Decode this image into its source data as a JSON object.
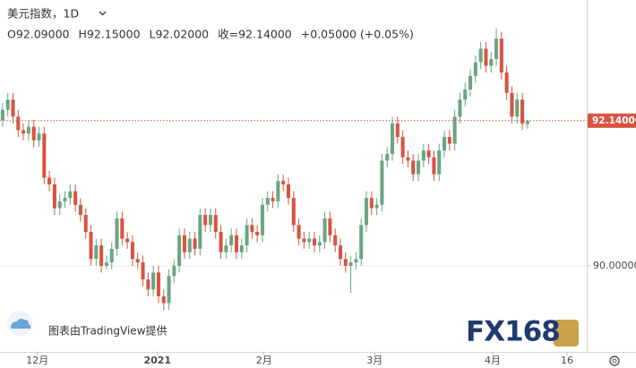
{
  "chart_data": {
    "type": "candlestick",
    "title": "美元指数，1D",
    "header_items": [
      "O92.09000",
      "H92.15000",
      "L92.02000",
      "收=92.14000",
      "+0.05000 (+0.05%)"
    ],
    "up_color": "#6ba583",
    "down_color": "#d75442",
    "ylim": [
      88.73,
      93.92
    ],
    "yticks": [
      {
        "value": 90,
        "label": "90.00000"
      }
    ],
    "last_price": {
      "value": 92.14,
      "label": "92.14000"
    },
    "xlim": [
      -0.5,
      112.4
    ],
    "xticks": [
      {
        "value": 6.7,
        "label": "12月"
      },
      {
        "value": 29.8,
        "label": "2021"
      },
      {
        "value": 50.3,
        "label": "2月"
      },
      {
        "value": 71.6,
        "label": "3月"
      },
      {
        "value": 94.3,
        "label": "4月"
      },
      {
        "value": 108.6,
        "label": "16"
      }
    ],
    "watermark": "图表由TradingView提供",
    "logo": "FX168",
    "candles": [
      [
        92.15,
        92.4,
        92.05,
        92.3
      ],
      [
        92.3,
        92.55,
        92.2,
        92.45
      ],
      [
        92.45,
        92.55,
        92.1,
        92.2
      ],
      [
        92.2,
        92.3,
        91.9,
        92.0
      ],
      [
        92.0,
        92.1,
        91.85,
        91.95
      ],
      [
        91.95,
        92.15,
        91.85,
        92.05
      ],
      [
        92.05,
        92.15,
        91.75,
        91.85
      ],
      [
        91.85,
        92.05,
        91.75,
        91.95
      ],
      [
        91.95,
        92.05,
        91.2,
        91.3
      ],
      [
        91.3,
        91.4,
        91.1,
        91.2
      ],
      [
        91.2,
        91.3,
        90.75,
        90.85
      ],
      [
        90.85,
        91.05,
        90.75,
        90.95
      ],
      [
        90.95,
        91.1,
        90.85,
        91.0
      ],
      [
        91.0,
        91.2,
        90.9,
        91.1
      ],
      [
        91.1,
        91.2,
        90.8,
        90.9
      ],
      [
        90.9,
        91.0,
        90.65,
        90.75
      ],
      [
        90.75,
        90.85,
        90.4,
        90.5
      ],
      [
        90.5,
        90.6,
        90.0,
        90.1
      ],
      [
        90.1,
        90.4,
        90.0,
        90.3
      ],
      [
        90.3,
        90.4,
        89.9,
        90.0
      ],
      [
        90.0,
        90.15,
        89.95,
        90.05
      ],
      [
        90.05,
        90.35,
        89.95,
        90.25
      ],
      [
        90.25,
        90.8,
        90.15,
        90.7
      ],
      [
        90.7,
        90.8,
        90.3,
        90.4
      ],
      [
        90.4,
        90.5,
        90.25,
        90.35
      ],
      [
        90.35,
        90.45,
        90.0,
        90.1
      ],
      [
        90.1,
        90.2,
        89.95,
        90.05
      ],
      [
        90.05,
        90.15,
        89.7,
        89.8
      ],
      [
        89.8,
        89.9,
        89.55,
        89.65
      ],
      [
        89.65,
        90.0,
        89.55,
        89.9
      ],
      [
        89.9,
        90.0,
        89.45,
        89.55
      ],
      [
        89.55,
        89.65,
        89.35,
        89.45
      ],
      [
        89.45,
        89.95,
        89.35,
        89.85
      ],
      [
        89.85,
        90.1,
        89.75,
        90.0
      ],
      [
        90.0,
        90.55,
        89.9,
        90.45
      ],
      [
        90.45,
        90.55,
        90.1,
        90.2
      ],
      [
        90.2,
        90.5,
        90.1,
        90.4
      ],
      [
        90.4,
        90.5,
        90.15,
        90.25
      ],
      [
        90.25,
        90.85,
        90.15,
        90.75
      ],
      [
        90.75,
        90.85,
        90.5,
        90.6
      ],
      [
        90.6,
        90.85,
        90.5,
        90.75
      ],
      [
        90.75,
        90.85,
        90.4,
        90.5
      ],
      [
        90.5,
        90.6,
        90.1,
        90.2
      ],
      [
        90.2,
        90.4,
        90.1,
        90.3
      ],
      [
        90.3,
        90.55,
        90.2,
        90.45
      ],
      [
        90.45,
        90.55,
        90.1,
        90.2
      ],
      [
        90.2,
        90.4,
        90.1,
        90.3
      ],
      [
        90.3,
        90.7,
        90.2,
        90.6
      ],
      [
        90.6,
        90.7,
        90.4,
        90.5
      ],
      [
        90.5,
        90.6,
        90.35,
        90.45
      ],
      [
        90.45,
        91.0,
        90.35,
        90.9
      ],
      [
        90.9,
        91.1,
        90.8,
        91.0
      ],
      [
        91.0,
        91.1,
        90.85,
        90.95
      ],
      [
        90.95,
        91.35,
        90.85,
        91.25
      ],
      [
        91.25,
        91.35,
        91.1,
        91.2
      ],
      [
        91.2,
        91.3,
        90.9,
        91.0
      ],
      [
        91.0,
        91.1,
        90.5,
        90.6
      ],
      [
        90.6,
        90.7,
        90.3,
        90.4
      ],
      [
        90.4,
        90.5,
        90.25,
        90.35
      ],
      [
        90.35,
        90.5,
        90.25,
        90.4
      ],
      [
        90.4,
        90.5,
        90.2,
        90.3
      ],
      [
        90.3,
        90.45,
        90.2,
        90.35
      ],
      [
        90.35,
        90.8,
        90.25,
        90.7
      ],
      [
        90.7,
        90.8,
        90.35,
        90.45
      ],
      [
        90.45,
        90.55,
        90.2,
        90.3
      ],
      [
        90.3,
        90.4,
        90.0,
        90.1
      ],
      [
        90.1,
        90.2,
        89.9,
        90.0
      ],
      [
        90.0,
        90.15,
        89.6,
        90.05
      ],
      [
        90.05,
        90.2,
        89.95,
        90.1
      ],
      [
        90.1,
        90.7,
        90.0,
        90.6
      ],
      [
        90.6,
        91.1,
        90.5,
        91.0
      ],
      [
        91.0,
        91.1,
        90.75,
        90.85
      ],
      [
        90.85,
        91.0,
        90.75,
        90.9
      ],
      [
        90.9,
        91.65,
        90.8,
        91.55
      ],
      [
        91.55,
        91.75,
        91.45,
        91.65
      ],
      [
        91.65,
        92.2,
        91.55,
        92.1
      ],
      [
        92.1,
        92.2,
        91.8,
        91.9
      ],
      [
        91.9,
        92.0,
        91.5,
        91.6
      ],
      [
        91.6,
        91.7,
        91.45,
        91.55
      ],
      [
        91.55,
        91.65,
        91.25,
        91.35
      ],
      [
        91.35,
        91.65,
        91.25,
        91.55
      ],
      [
        91.55,
        91.8,
        91.45,
        91.7
      ],
      [
        91.7,
        91.8,
        91.5,
        91.6
      ],
      [
        91.6,
        91.7,
        91.25,
        91.35
      ],
      [
        91.35,
        91.8,
        91.25,
        91.7
      ],
      [
        91.7,
        92.0,
        91.6,
        91.9
      ],
      [
        91.9,
        92.0,
        91.7,
        91.8
      ],
      [
        91.8,
        92.3,
        91.7,
        92.2
      ],
      [
        92.2,
        92.55,
        92.1,
        92.45
      ],
      [
        92.45,
        92.7,
        92.35,
        92.6
      ],
      [
        92.6,
        92.9,
        92.5,
        92.8
      ],
      [
        92.8,
        93.1,
        92.7,
        93.0
      ],
      [
        93.0,
        93.3,
        92.9,
        93.2
      ],
      [
        93.2,
        93.3,
        92.85,
        92.95
      ],
      [
        92.95,
        93.15,
        92.85,
        93.05
      ],
      [
        93.05,
        93.5,
        92.95,
        93.35
      ],
      [
        93.35,
        93.45,
        92.75,
        92.85
      ],
      [
        92.85,
        92.95,
        92.45,
        92.55
      ],
      [
        92.55,
        92.65,
        92.1,
        92.2
      ],
      [
        92.2,
        92.55,
        92.1,
        92.45
      ],
      [
        92.45,
        92.55,
        92.0,
        92.1
      ],
      [
        92.09,
        92.15,
        92.02,
        92.14
      ]
    ]
  }
}
